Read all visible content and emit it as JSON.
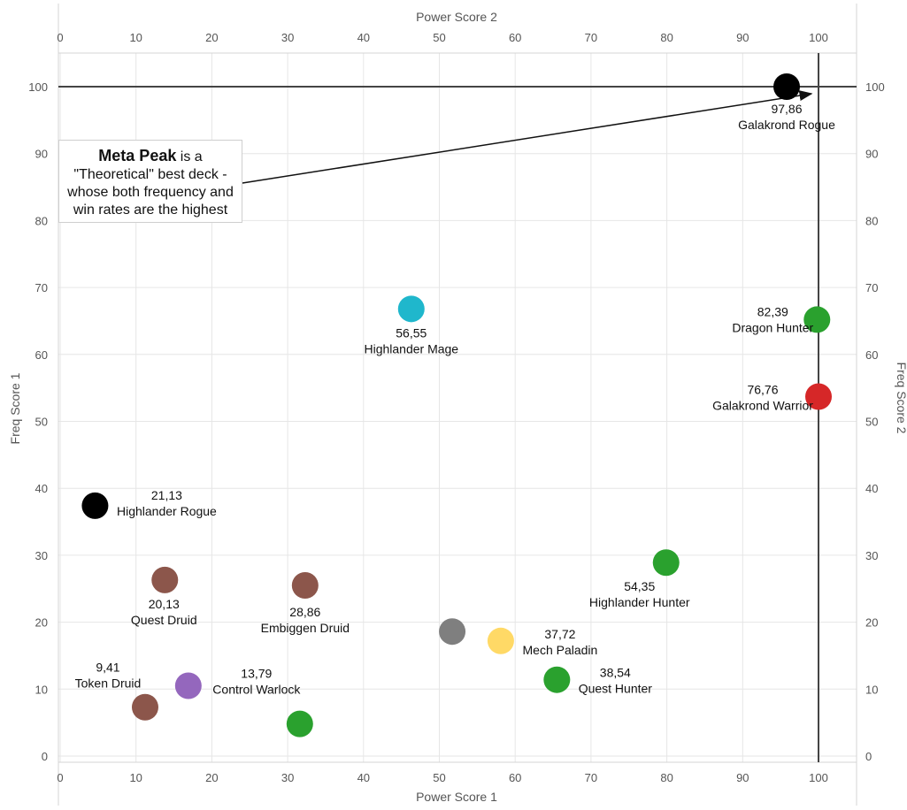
{
  "chart_data": {
    "type": "scatter",
    "title": "",
    "xlabel_bottom": "Power Score 1",
    "xlabel_top": "Power Score 2",
    "ylabel_left": "Freq Score 1",
    "ylabel_right": "Freq Score 2",
    "xlim": [
      0,
      105
    ],
    "ylim": [
      0,
      105
    ],
    "x_ticks": [
      0,
      10,
      20,
      30,
      40,
      50,
      60,
      70,
      80,
      90,
      100
    ],
    "y_ticks": [
      0,
      10,
      20,
      30,
      40,
      50,
      60,
      70,
      80,
      90,
      100
    ],
    "grid": true,
    "reference_lines": {
      "x": 100,
      "y": 100
    },
    "points": [
      {
        "name": "Galakrond Rogue",
        "score": "97,86",
        "x": 95.8,
        "y": 100,
        "color": "#000000"
      },
      {
        "name": "Highlander Mage",
        "score": "56,55",
        "x": 46.3,
        "y": 66.8,
        "color": "#1fb7cc"
      },
      {
        "name": "Dragon Hunter",
        "score": "82,39",
        "x": 99.8,
        "y": 65.2,
        "color": "#2aa12e"
      },
      {
        "name": "Galakrond Warrior",
        "score": "76,76",
        "x": 100,
        "y": 53.7,
        "color": "#d62728"
      },
      {
        "name": "Highlander Rogue",
        "score": "21,13",
        "x": 4.6,
        "y": 37.4,
        "color": "#000000"
      },
      {
        "name": "Highlander Hunter",
        "score": "54,35",
        "x": 79.9,
        "y": 28.9,
        "color": "#2aa12e"
      },
      {
        "name": "Quest Druid",
        "score": "20,13",
        "x": 13.8,
        "y": 26.3,
        "color": "#8c564b"
      },
      {
        "name": "Embiggen Druid",
        "score": "28,86",
        "x": 32.3,
        "y": 25.5,
        "color": "#8c564b"
      },
      {
        "name": "",
        "score": "",
        "x": 51.7,
        "y": 18.6,
        "color": "#7f7f7f"
      },
      {
        "name": "Mech Paladin",
        "score": "37,72",
        "x": 58.1,
        "y": 17.2,
        "color": "#ffd966"
      },
      {
        "name": "Quest Hunter",
        "score": "38,54",
        "x": 65.5,
        "y": 11.4,
        "color": "#2aa12e"
      },
      {
        "name": "Control Warlock",
        "score": "13,79",
        "x": 16.9,
        "y": 10.5,
        "color": "#9467bd"
      },
      {
        "name": "Token Druid",
        "score": "9,41",
        "x": 11.2,
        "y": 7.3,
        "color": "#8c564b"
      },
      {
        "name": "",
        "score": "",
        "x": 31.6,
        "y": 4.8,
        "color": "#2aa12e"
      }
    ],
    "annotation": {
      "bold": "Meta Peak",
      "line1_rest": " is a",
      "line2": "\"Theoretical\" best deck -",
      "line3": "whose both frequency and",
      "line4": "win rates are the highest",
      "arrow_to": {
        "x": 100,
        "y": 100
      }
    }
  }
}
